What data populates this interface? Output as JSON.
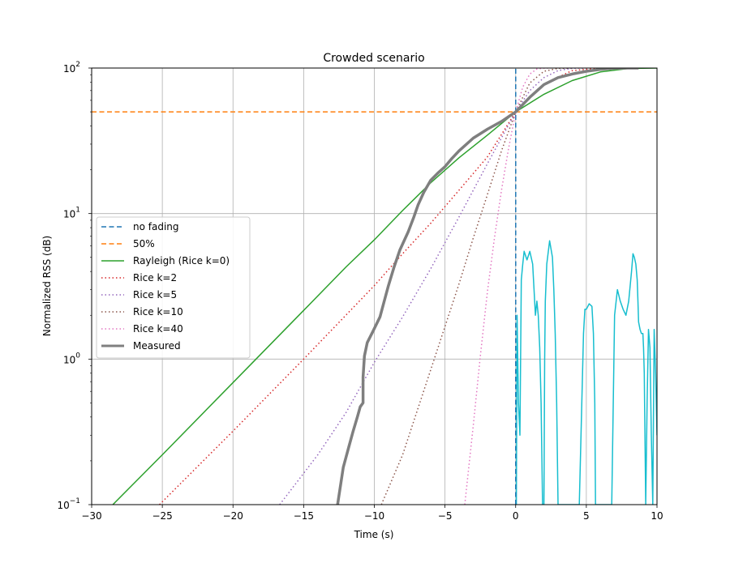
{
  "chart_data": {
    "type": "line",
    "title": "Crowded scenario",
    "xlabel": "Time (s)",
    "ylabel": "Normalized RSS (dB)",
    "xlim": [
      -30,
      10
    ],
    "ylim": [
      0.1,
      100
    ],
    "yscale": "log",
    "grid": true,
    "legend_placement": "center-left",
    "x_ticks": [
      -30,
      -25,
      -20,
      -15,
      -10,
      -5,
      0,
      5,
      10
    ],
    "x_tick_labels": [
      "−30",
      "−25",
      "−20",
      "−15",
      "−10",
      "−5",
      "0",
      "5",
      "10"
    ],
    "y_ticks": [
      0.1,
      1,
      10,
      100
    ],
    "y_tick_bases": [
      "10",
      "10",
      "10",
      "10"
    ],
    "y_tick_exponents": [
      "−1",
      "0",
      "1",
      "2"
    ],
    "series": [
      {
        "name": "no fading",
        "color": "#1f77b4",
        "dash": "dashed",
        "width": 1.5,
        "x": [
          0,
          0
        ],
        "y": [
          0.1,
          100
        ]
      },
      {
        "name": "50%",
        "color": "#ff7f0e",
        "dash": "dashed",
        "width": 1.5,
        "x": [
          -30,
          10
        ],
        "y": [
          50,
          50
        ]
      },
      {
        "name": "Rayleigh (Rice k=0)",
        "color": "#2ca02c",
        "dash": "solid",
        "width": 1.5,
        "x": [
          -28.5,
          -25,
          -20,
          -15,
          -12,
          -10,
          -8,
          -6,
          -4,
          -2,
          0,
          2,
          4,
          6,
          8,
          10
        ],
        "y": [
          0.1,
          0.22,
          0.69,
          2.16,
          4.3,
          6.6,
          10.5,
          16.3,
          24.2,
          34.6,
          50,
          66,
          82,
          94,
          99.3,
          100
        ]
      },
      {
        "name": "Rice k=2",
        "color": "#d62728",
        "dash": "dotted",
        "width": 1.5,
        "x": [
          -25.2,
          -20,
          -15,
          -10,
          -8,
          -6,
          -4,
          -2,
          0,
          2,
          4,
          6
        ],
        "y": [
          0.1,
          0.32,
          1.0,
          3.2,
          5.3,
          8.6,
          14.5,
          24.5,
          50,
          78,
          96,
          100
        ]
      },
      {
        "name": "Rice k=5",
        "color": "#9467bd",
        "dash": "dotted",
        "width": 1.5,
        "x": [
          -16.7,
          -14,
          -12,
          -10,
          -8,
          -6,
          -4,
          -2,
          0,
          1,
          2,
          3,
          4,
          5
        ],
        "y": [
          0.1,
          0.22,
          0.43,
          0.95,
          1.95,
          4.2,
          9.5,
          22,
          50,
          70,
          86,
          96,
          99.6,
          100
        ]
      },
      {
        "name": "Rice k=10",
        "color": "#8c564b",
        "dash": "dotted",
        "width": 1.5,
        "x": [
          -9.5,
          -8,
          -6,
          -4,
          -3,
          -2,
          -1,
          0,
          1,
          2,
          3,
          4
        ],
        "y": [
          0.1,
          0.22,
          0.85,
          3.3,
          6.8,
          13.5,
          27,
          50,
          79,
          95,
          99.5,
          100
        ]
      },
      {
        "name": "Rice k=40",
        "color": "#e377c2",
        "dash": "dotted",
        "width": 1.5,
        "x": [
          -3.6,
          -3,
          -2.5,
          -2,
          -1.5,
          -1,
          -0.5,
          0,
          0.5,
          1,
          1.5,
          2,
          2.5
        ],
        "y": [
          0.1,
          0.35,
          1.05,
          2.9,
          6.8,
          14.5,
          28,
          50,
          74,
          91,
          98.5,
          99.9,
          100
        ]
      },
      {
        "name": "Measured",
        "color": "#7f7f7f",
        "dash": "solid",
        "width": 3.5,
        "x": [
          -12.6,
          -12.2,
          -11.8,
          -11.5,
          -11.2,
          -11.0,
          -10.8,
          -10.8,
          -10.7,
          -10.5,
          -10.1,
          -9.6,
          -9.3,
          -9.0,
          -8.6,
          -8.2,
          -7.6,
          -7.2,
          -6.9,
          -6.5,
          -6.0,
          -5.5,
          -5.0,
          -4.5,
          -4.0,
          -3.0,
          -2.0,
          -1.0,
          0,
          1,
          2,
          3,
          4,
          5,
          6,
          7,
          8,
          8.7
        ],
        "y": [
          0.1,
          0.18,
          0.25,
          0.32,
          0.4,
          0.47,
          0.5,
          0.75,
          1.05,
          1.3,
          1.55,
          1.95,
          2.5,
          3.2,
          4.3,
          5.6,
          7.5,
          9.5,
          11.5,
          14,
          17,
          19,
          21,
          24,
          27,
          33,
          38,
          43,
          50,
          63,
          77,
          86,
          91,
          95,
          98,
          99.6,
          100,
          100
        ]
      },
      {
        "name": "",
        "color": "#17becf",
        "dash": "solid",
        "width": 1.5,
        "x": [
          0.05,
          0.1,
          0.2,
          0.3,
          0.4,
          0.5,
          0.6,
          0.8,
          1.0,
          1.2,
          1.4,
          1.5,
          1.6,
          1.7,
          1.8,
          1.9,
          2.0,
          2.05,
          2.1,
          2.2,
          2.4,
          2.6,
          2.7,
          2.8,
          2.9,
          3.0,
          3.05,
          3.1,
          3.5,
          4.5,
          4.8,
          4.9,
          5.0,
          5.2,
          5.4,
          5.5,
          5.6,
          5.65,
          5.7,
          6.5,
          6.8,
          7.0,
          7.2,
          7.4,
          7.6,
          7.8,
          8.0,
          8.2,
          8.3,
          8.4,
          8.5,
          8.6,
          8.65,
          8.7,
          8.8,
          8.9,
          9.0,
          9.05,
          9.1,
          9.2,
          9.3,
          9.4,
          9.5,
          9.6,
          9.7,
          9.8,
          9.9,
          10.0
        ],
        "y": [
          0.1,
          2.0,
          0.5,
          0.3,
          3.5,
          4.5,
          5.5,
          4.8,
          5.5,
          4.5,
          2.0,
          2.5,
          2.0,
          1.2,
          0.5,
          0.1,
          0.1,
          1.0,
          2.5,
          4.5,
          6.5,
          5.0,
          3.0,
          1.5,
          0.5,
          0.1,
          0.1,
          0.1,
          0.1,
          0.1,
          1.5,
          2.2,
          2.2,
          2.4,
          2.3,
          1.5,
          0.5,
          0.1,
          0.1,
          0.1,
          0.1,
          2.0,
          3.0,
          2.5,
          2.2,
          2.0,
          2.5,
          4.0,
          5.3,
          5.0,
          4.5,
          3.5,
          2.5,
          1.8,
          1.6,
          1.5,
          1.5,
          1.2,
          0.8,
          0.1,
          0.5,
          1.6,
          1.2,
          0.3,
          0.1,
          1.6,
          0.8,
          0.3
        ]
      }
    ]
  }
}
